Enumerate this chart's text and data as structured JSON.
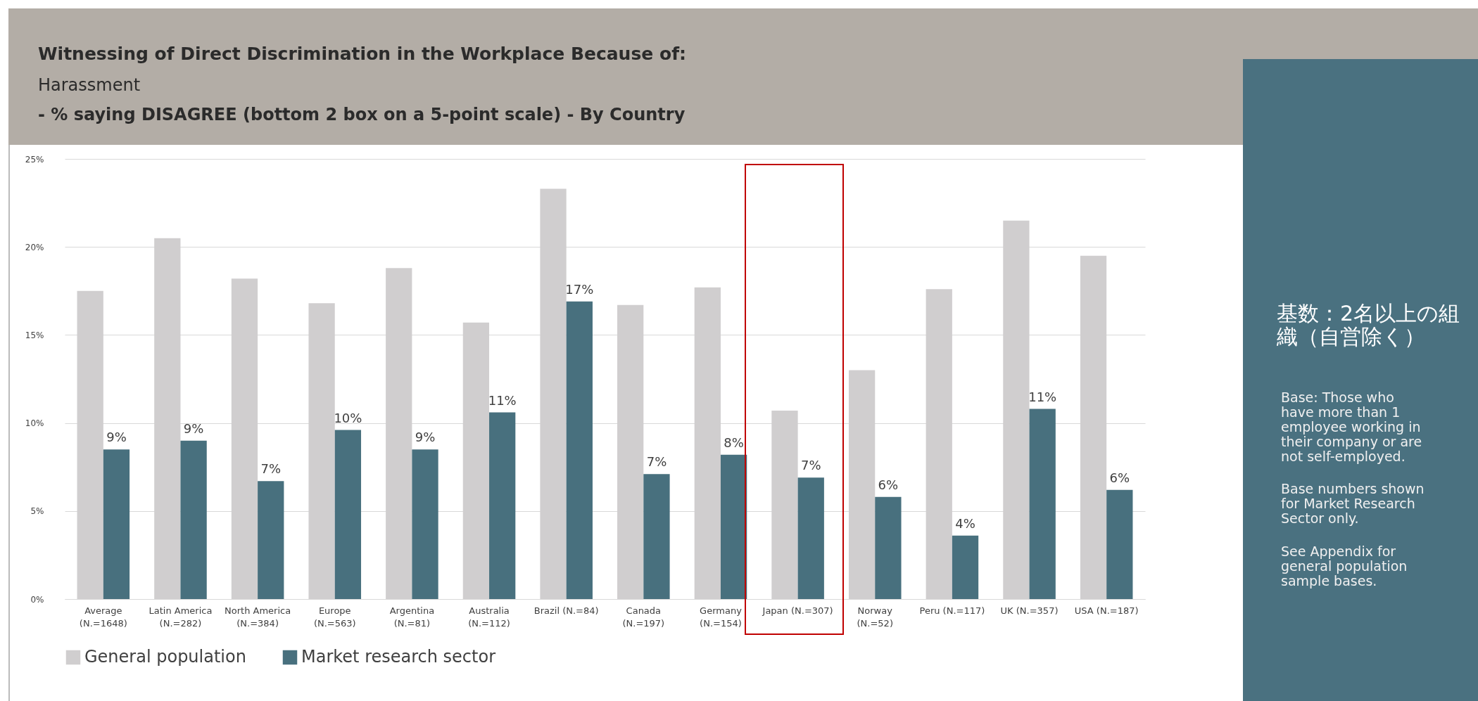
{
  "chart_data": {
    "type": "bar",
    "title": "Witnessing of Direct Discrimination in the Workplace Because of:",
    "subtitle": "Harassment\n- % saying DISAGREE (bottom 2 box on a 5-point scale) - By Country",
    "categories": [
      "Average\n(N.=1648)",
      "Latin America\n(N.=282)",
      "North America\n(N.=384)",
      "Europe\n(N.=563)",
      "Argentina\n(N.=81)",
      "Australia\n(N.=112)",
      "Brazil (N.=84)",
      "Canada\n(N.=197)",
      "Germany\n(N.=154)",
      "Japan (N.=307)",
      "Norway\n(N.=52)",
      "Peru (N.=117)",
      "UK (N.=357)",
      "USA (N.=187)"
    ],
    "series": [
      {
        "name": "General population",
        "color": "#d0cecf",
        "values": [
          17.5,
          20.5,
          18.2,
          16.8,
          18.8,
          15.7,
          23.3,
          16.7,
          17.7,
          10.7,
          13.0,
          17.6,
          21.5,
          19.5
        ]
      },
      {
        "name": "Market research sector",
        "color": "#48707e",
        "values": [
          8.5,
          9.0,
          6.7,
          9.6,
          8.5,
          10.6,
          16.9,
          7.1,
          8.2,
          6.9,
          5.8,
          3.6,
          10.8,
          6.2
        ],
        "value_labels": [
          "9%",
          "9%",
          "7%",
          "10%",
          "9%",
          "11%",
          "17%",
          "7%",
          "8%",
          "7%",
          "6%",
          "4%",
          "11%",
          "6%"
        ]
      }
    ],
    "ylim": [
      0,
      25
    ],
    "yticks": [
      {
        "value": 0,
        "label": "0%"
      },
      {
        "value": 5,
        "label": "5%"
      },
      {
        "value": 10,
        "label": "10%"
      },
      {
        "value": 15,
        "label": "15%"
      },
      {
        "value": 20,
        "label": "20%"
      },
      {
        "value": 25,
        "label": "25%"
      }
    ],
    "grid": "y",
    "legend": "bottom",
    "annotations": [
      "基数：2名以上の組織（自営除く）",
      "Base: Those who have more than 1 employee working in their company or are not self-employed.",
      "Base numbers shown for Market Research Sector only.",
      "See Appendix for general population sample bases."
    ]
  }
}
